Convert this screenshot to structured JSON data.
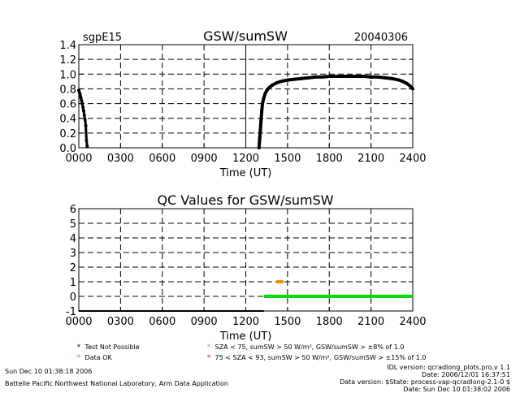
{
  "chart_data": [
    {
      "type": "scatter",
      "site": "sgpE15",
      "title": "GSW/sumSW",
      "date": "20040306",
      "xlabel": "Time (UT)",
      "ylabel": "",
      "xlim": [
        0,
        2400
      ],
      "ylim": [
        0,
        1.4
      ],
      "x_ticks": [
        "0000",
        "0300",
        "0600",
        "0900",
        "1200",
        "1500",
        "1800",
        "2100",
        "2400"
      ],
      "y_ticks": [
        "0.0",
        "0.2",
        "0.4",
        "0.6",
        "0.8",
        "1.0",
        "1.2",
        "1.4"
      ],
      "grid": true,
      "series": [
        {
          "color": "#000000",
          "x": [
            0,
            5,
            10,
            15,
            20,
            25,
            30,
            35,
            40,
            45,
            50,
            55,
            60,
            1295,
            1300,
            1305,
            1310,
            1315,
            1320,
            1330,
            1340,
            1355,
            1370,
            1390,
            1420,
            1450,
            1500,
            1550,
            1600,
            1650,
            1700,
            1750,
            1800,
            1850,
            1900,
            1950,
            2000,
            2050,
            2100,
            2150,
            2200,
            2250,
            2300,
            2330,
            2360,
            2380,
            2400
          ],
          "y": [
            0.78,
            0.75,
            0.72,
            0.68,
            0.64,
            0.6,
            0.55,
            0.5,
            0.44,
            0.38,
            0.3,
            0.1,
            0.02,
            0.0,
            0.12,
            0.25,
            0.38,
            0.5,
            0.6,
            0.68,
            0.74,
            0.79,
            0.82,
            0.85,
            0.88,
            0.9,
            0.92,
            0.93,
            0.94,
            0.95,
            0.96,
            0.96,
            0.97,
            0.97,
            0.97,
            0.97,
            0.97,
            0.97,
            0.96,
            0.96,
            0.95,
            0.94,
            0.92,
            0.9,
            0.87,
            0.84,
            0.8
          ]
        }
      ]
    },
    {
      "type": "line",
      "title": "QC Values for GSW/sumSW",
      "xlabel": "Time (UT)",
      "ylabel": "",
      "xlim": [
        0,
        2400
      ],
      "ylim": [
        -1,
        6
      ],
      "x_ticks": [
        "0000",
        "0300",
        "0600",
        "0900",
        "1200",
        "1500",
        "1800",
        "2100",
        "2400"
      ],
      "y_ticks": [
        "-1",
        "0",
        "1",
        "2",
        "3",
        "4",
        "5",
        "6"
      ],
      "grid": true,
      "series": [
        {
          "name": "Test Not Possible",
          "color": "#000000",
          "x": [
            0,
            1330
          ],
          "y": [
            -1,
            -1
          ]
        },
        {
          "name": "Data OK",
          "color": "#00dd00",
          "x": [
            1330,
            2400
          ],
          "y": [
            0,
            0
          ]
        },
        {
          "name": "SZA < 75, sumSW > 50 W/m2, GSW/sumSW > ±8% of 1.0",
          "color": "#ff8c00",
          "x": [
            1420,
            1470
          ],
          "y": [
            1,
            1
          ]
        }
      ]
    }
  ],
  "legend": [
    {
      "label": "Test Not Possible",
      "color": "#000000"
    },
    {
      "label": "Data OK",
      "color": "#00dd00"
    },
    {
      "label": "SZA < 75, sumSW > 50 W/m², GSW/sumSW > ±8% of 1.0",
      "color": "#ff8c00"
    },
    {
      "label": "75 < SZA < 93, sumSW > 50 W/m², GSW/sumSW > ±15% of 1.0",
      "color": "#ff0000"
    }
  ],
  "footer": {
    "created": "Sun Dec 10 01:38:18 2006",
    "lab": "Battelle Pacific Northwest National Laboratory, Arm Data Application",
    "idl_version": "IDL version: qcradlong_plots.pro,v 1.1",
    "idl_date": "Date: 2006/12/01 16:37:51",
    "data_version": "Data version: $State: process-vap-qcradlong-2.1-0 $",
    "data_date": "Date: Sun Dec 10 01:38:02 2006"
  }
}
